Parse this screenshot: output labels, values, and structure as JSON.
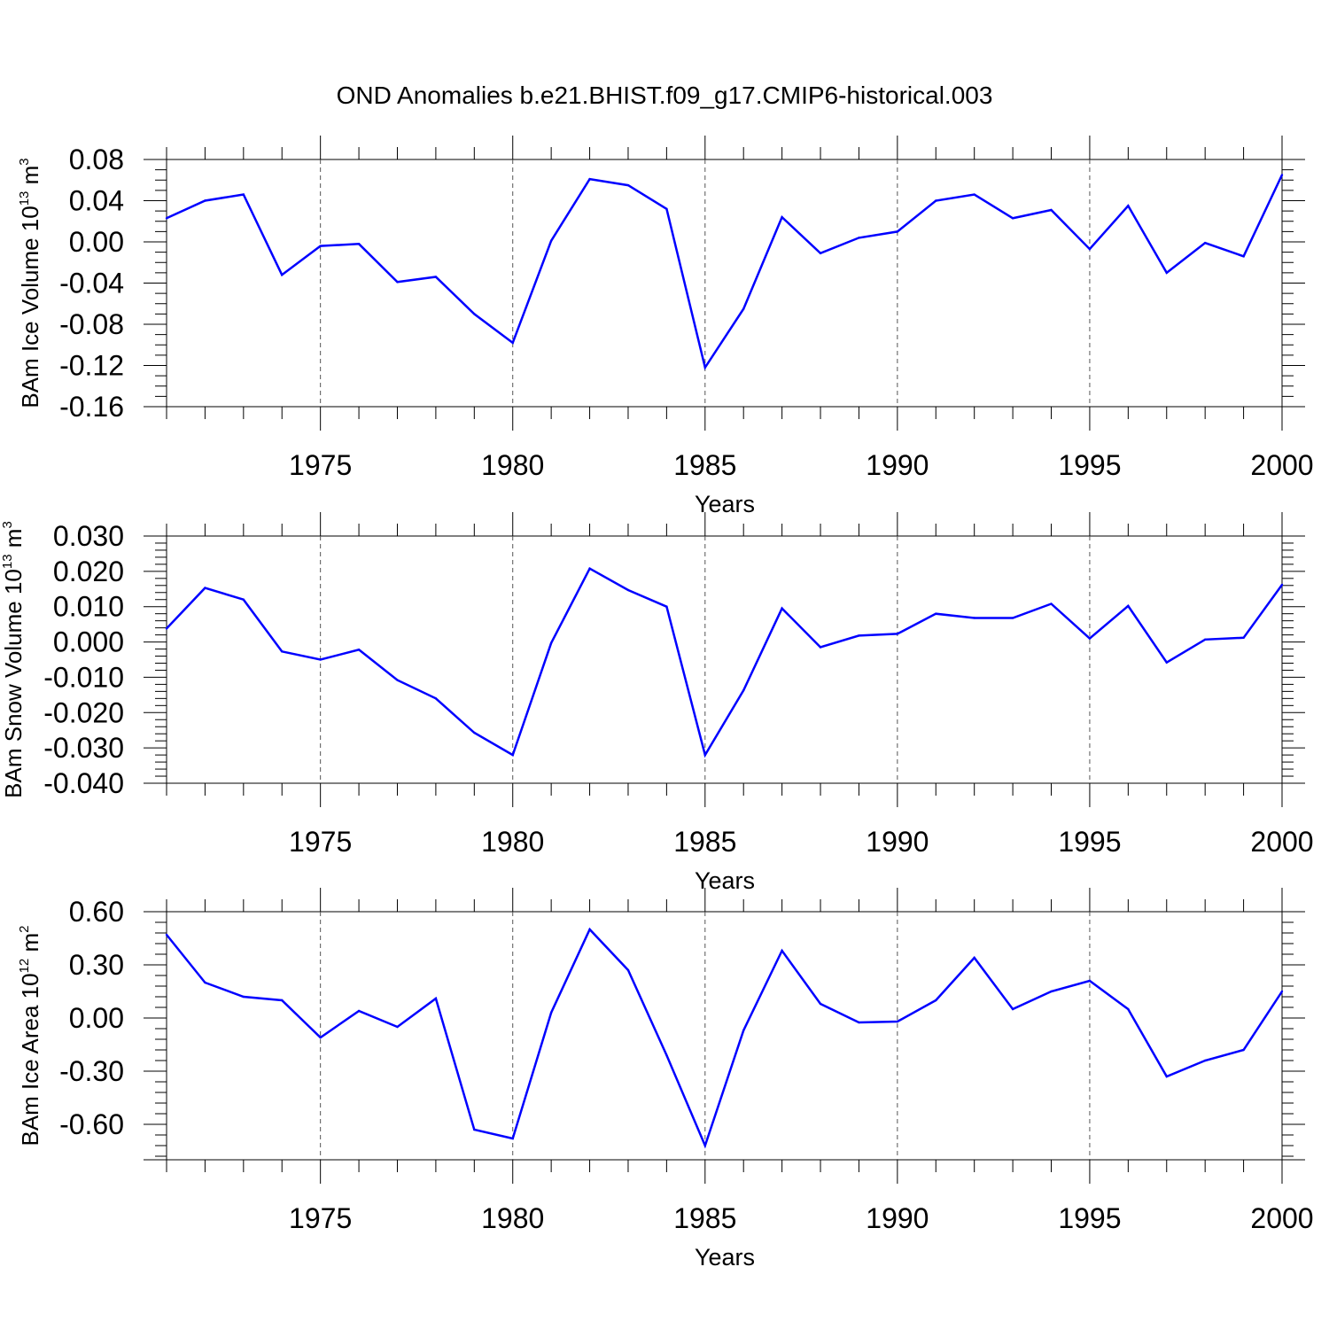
{
  "figure_title": "OND Anomalies b.e21.BHIST.f09_g17.CMIP6-historical.003",
  "colors": {
    "line": "#0000ff",
    "axes": "#000000",
    "grid": "#555555"
  },
  "chart_data": [
    {
      "type": "line",
      "name": "ice-volume",
      "title": "OND Anomalies b.e21.BHIST.f09_g17.CMIP6-historical.003",
      "ylabel": {
        "main": "BAm Ice Volume 10",
        "exp": "13",
        "unit": " m",
        "unit_exp": "3"
      },
      "xlabel": "Years",
      "xlim": [
        1971,
        2000
      ],
      "ylim": [
        -0.16,
        0.08
      ],
      "x_ticks": [
        "1975",
        "1980",
        "1985",
        "1990",
        "1995",
        "2000"
      ],
      "y_ticks": [
        "0.08",
        "0.04",
        "0.00",
        "-0.04",
        "-0.08",
        "-0.12",
        "-0.16"
      ],
      "grid": "dashed vertical at major x ticks",
      "x": [
        1971,
        1972,
        1973,
        1974,
        1975,
        1976,
        1977,
        1978,
        1979,
        1980,
        1981,
        1982,
        1983,
        1984,
        1985,
        1986,
        1987,
        1988,
        1989,
        1990,
        1991,
        1992,
        1993,
        1994,
        1995,
        1996,
        1997,
        1998,
        1999,
        2000
      ],
      "series": [
        {
          "name": "BAm Ice Volume",
          "values": [
            0.023,
            0.04,
            0.046,
            -0.032,
            -0.004,
            -0.002,
            -0.039,
            -0.034,
            -0.07,
            -0.098,
            0.001,
            0.061,
            0.055,
            0.032,
            -0.122,
            -0.065,
            0.024,
            -0.011,
            0.004,
            0.01,
            0.04,
            0.046,
            0.023,
            0.031,
            -0.007,
            0.035,
            -0.03,
            -0.001,
            -0.014,
            0.065
          ]
        }
      ]
    },
    {
      "type": "line",
      "name": "snow-volume",
      "ylabel": {
        "main": "BAm Snow Volume 10",
        "exp": "13",
        "unit": " m",
        "unit_exp": "3"
      },
      "xlabel": "Years",
      "xlim": [
        1971,
        2000
      ],
      "ylim": [
        -0.04,
        0.03
      ],
      "x_ticks": [
        "1975",
        "1980",
        "1985",
        "1990",
        "1995",
        "2000"
      ],
      "y_ticks": [
        "0.030",
        "0.020",
        "0.010",
        "0.000",
        "-0.010",
        "-0.020",
        "-0.030",
        "-0.040"
      ],
      "grid": "dashed vertical at major x ticks",
      "x": [
        1971,
        1972,
        1973,
        1974,
        1975,
        1976,
        1977,
        1978,
        1979,
        1980,
        1981,
        1982,
        1983,
        1984,
        1985,
        1986,
        1987,
        1988,
        1989,
        1990,
        1991,
        1992,
        1993,
        1994,
        1995,
        1996,
        1997,
        1998,
        1999,
        2000
      ],
      "series": [
        {
          "name": "BAm Snow Volume",
          "values": [
            0.0038,
            0.0153,
            0.012,
            -0.0027,
            -0.005,
            -0.0022,
            -0.0108,
            -0.016,
            -0.0257,
            -0.032,
            -0.0003,
            0.0208,
            0.0147,
            0.01,
            -0.032,
            -0.0137,
            0.0095,
            -0.0015,
            0.0018,
            0.0023,
            0.008,
            0.0068,
            0.0068,
            0.0108,
            0.001,
            0.0102,
            -0.0058,
            0.0007,
            0.0012,
            0.0162
          ]
        }
      ]
    },
    {
      "type": "line",
      "name": "ice-area",
      "ylabel": {
        "main": "BAm Ice Area 10",
        "exp": "12",
        "unit": " m",
        "unit_exp": "2"
      },
      "xlabel": "Years",
      "xlim": [
        1971,
        2000
      ],
      "ylim": [
        -0.8,
        0.6
      ],
      "x_ticks": [
        "1975",
        "1980",
        "1985",
        "1990",
        "1995",
        "2000"
      ],
      "y_ticks": [
        "0.60",
        "0.30",
        "0.00",
        "-0.30",
        "-0.60"
      ],
      "grid": "dashed vertical at major x ticks",
      "x": [
        1971,
        1972,
        1973,
        1974,
        1975,
        1976,
        1977,
        1978,
        1979,
        1980,
        1981,
        1982,
        1983,
        1984,
        1985,
        1986,
        1987,
        1988,
        1989,
        1990,
        1991,
        1992,
        1993,
        1994,
        1995,
        1996,
        1997,
        1998,
        1999,
        2000
      ],
      "series": [
        {
          "name": "BAm Ice Area",
          "values": [
            0.47,
            0.2,
            0.12,
            0.1,
            -0.11,
            0.04,
            -0.05,
            0.11,
            -0.63,
            -0.68,
            0.03,
            0.5,
            0.27,
            -0.21,
            -0.72,
            -0.07,
            0.38,
            0.08,
            -0.025,
            -0.02,
            0.1,
            0.34,
            0.05,
            0.15,
            0.21,
            0.05,
            -0.33,
            -0.24,
            -0.18,
            0.15
          ]
        }
      ]
    }
  ]
}
